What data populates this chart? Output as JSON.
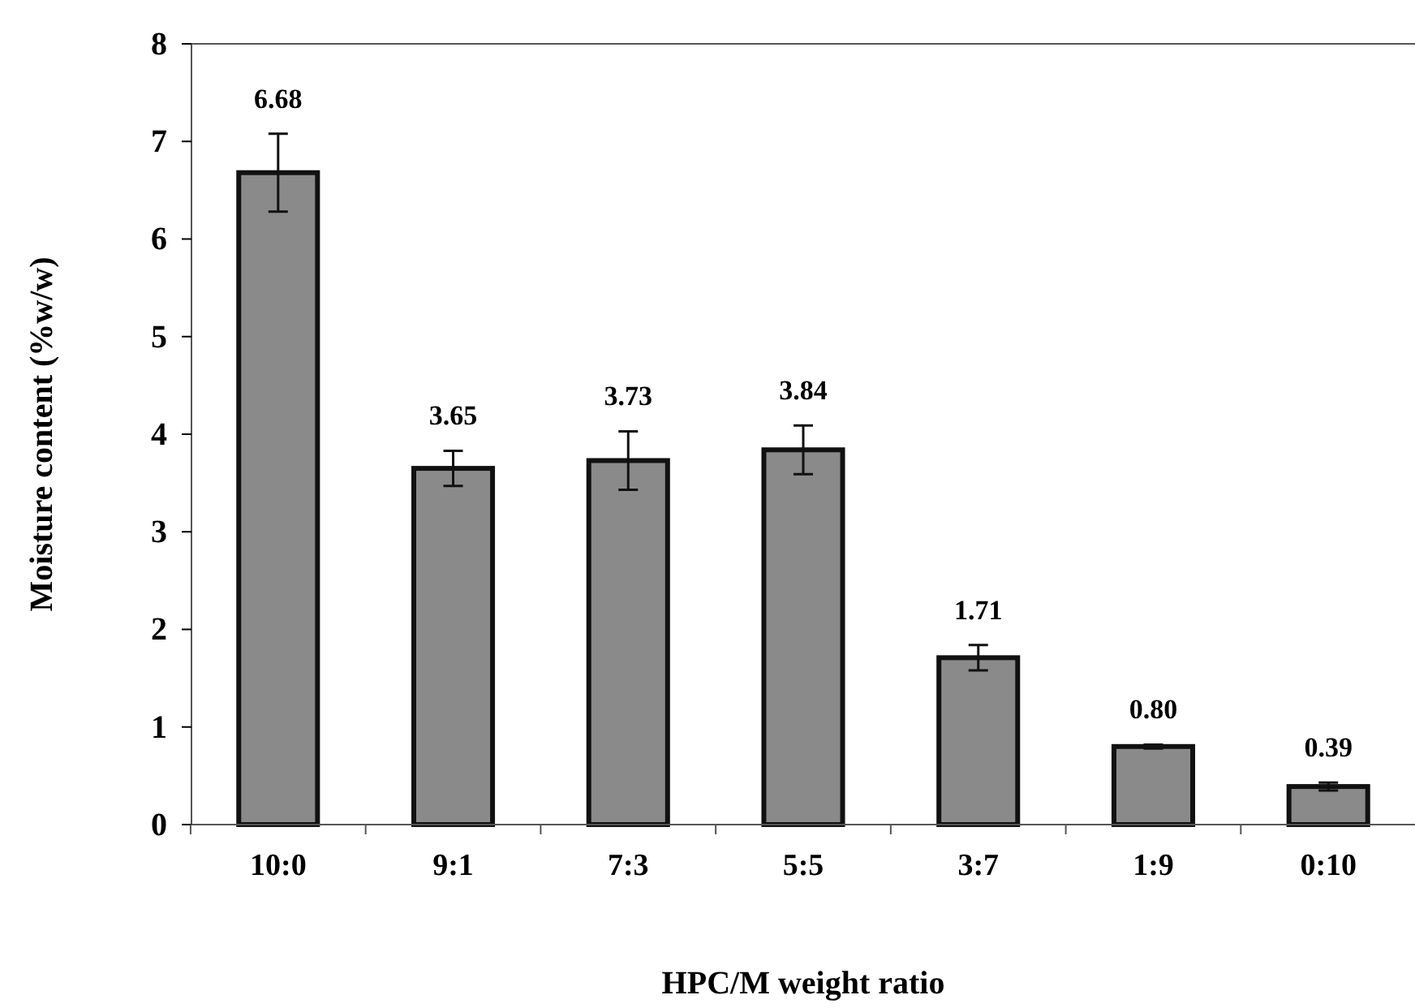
{
  "chart_data": {
    "type": "bar",
    "xlabel": "HPC/M weight ratio",
    "ylabel": "Moisture content (%w/w)",
    "categories": [
      "10:0",
      "9:1",
      "7:3",
      "5:5",
      "3:7",
      "1:9",
      "0:10"
    ],
    "values": [
      6.68,
      3.65,
      3.73,
      3.84,
      1.71,
      0.8,
      0.39
    ],
    "value_labels": [
      "6.68",
      "3.65",
      "3.73",
      "3.84",
      "1.71",
      "0.80",
      "0.39"
    ],
    "errors": [
      0.4,
      0.18,
      0.3,
      0.25,
      0.13,
      0.02,
      0.04
    ],
    "color": "#8a8a8a",
    "ylim": [
      0,
      8
    ],
    "yticks": [
      0,
      1,
      2,
      3,
      4,
      5,
      6,
      7,
      8
    ],
    "grid": false
  }
}
